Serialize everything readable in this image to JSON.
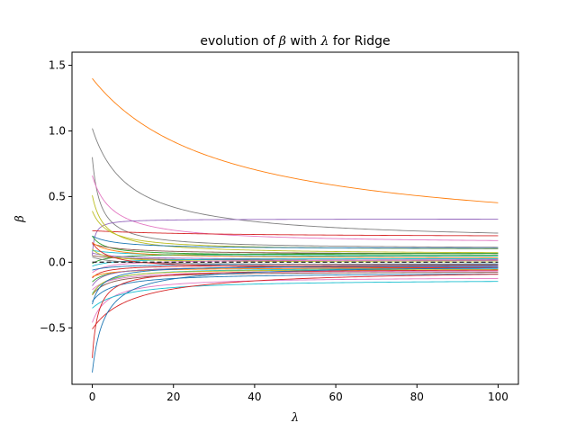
{
  "chart_data": {
    "type": "line",
    "title_parts": {
      "prefix": "evolution of ",
      "beta": "β",
      "middle": " with ",
      "lambda": "λ",
      "suffix": " for Ridge"
    },
    "xlabel": "λ",
    "ylabel": "β",
    "xlim": [
      -5,
      105
    ],
    "ylim": [
      -0.93,
      1.6
    ],
    "xticks": [
      0,
      20,
      40,
      60,
      80,
      100
    ],
    "yticks": [
      -0.5,
      0.0,
      0.5,
      1.0,
      1.5
    ],
    "ytick_labels": [
      "−0.5",
      "0.0",
      "0.5",
      "1.0",
      "1.5"
    ],
    "grid": false,
    "legend": "none",
    "reference_line": {
      "y": 0,
      "style": "dashed",
      "color": "#333333"
    },
    "lambda_range": [
      0,
      100
    ],
    "curve_model": "beta(lambda) = a * c / (c + lambda) + b",
    "series": [
      {
        "color": "#ff7f0e",
        "a": 1.25,
        "b": 0.15,
        "c": 32
      },
      {
        "color": "#7f7f7f",
        "a": 0.87,
        "b": 0.15,
        "c": 9
      },
      {
        "color": "#7f7f7f",
        "a": 0.7,
        "b": 0.1,
        "c": 2
      },
      {
        "color": "#e377c2",
        "a": 0.52,
        "b": 0.14,
        "c": 5
      },
      {
        "color": "#9467bd",
        "a": -0.28,
        "b": 0.33,
        "c": 0.6
      },
      {
        "color": "#d62728",
        "a": 0.05,
        "b": 0.19,
        "c": 30
      },
      {
        "color": "#bcbd22",
        "a": 0.45,
        "b": 0.06,
        "c": 3
      },
      {
        "color": "#bcbd22",
        "a": 0.3,
        "b": 0.09,
        "c": 4
      },
      {
        "color": "#1f77b4",
        "a": 0.1,
        "b": 0.1,
        "c": 6
      },
      {
        "color": "#2ca02c",
        "a": 0.15,
        "b": 0.05,
        "c": 3
      },
      {
        "color": "#8c564b",
        "a": 0.08,
        "b": 0.06,
        "c": 8
      },
      {
        "color": "#17becf",
        "a": 0.05,
        "b": 0.04,
        "c": 10
      },
      {
        "color": "#ff7f0e",
        "a": 0.12,
        "b": 0.03,
        "c": 5
      },
      {
        "color": "#2ca02c",
        "a": -0.08,
        "b": 0.07,
        "c": 4
      },
      {
        "color": "#9467bd",
        "a": 0.05,
        "b": 0.02,
        "c": 6
      },
      {
        "color": "#8c564b",
        "a": 0.04,
        "b": 0.01,
        "c": 8
      },
      {
        "color": "#17becf",
        "a": -0.06,
        "b": 0.03,
        "c": 5
      },
      {
        "color": "#bcbd22",
        "a": 0.1,
        "b": 0.0,
        "c": 3
      },
      {
        "color": "#e377c2",
        "a": -0.1,
        "b": 0.02,
        "c": 4
      },
      {
        "color": "#1f77b4",
        "a": -0.05,
        "b": -0.01,
        "c": 6
      },
      {
        "color": "#7f7f7f",
        "a": 0.06,
        "b": -0.02,
        "c": 5
      },
      {
        "color": "#d62728",
        "a": -0.1,
        "b": -0.02,
        "c": 3
      },
      {
        "color": "#2ca02c",
        "a": -0.12,
        "b": -0.03,
        "c": 4
      },
      {
        "color": "#ff7f0e",
        "a": -0.07,
        "b": -0.04,
        "c": 6
      },
      {
        "color": "#9467bd",
        "a": -0.15,
        "b": -0.03,
        "c": 3
      },
      {
        "color": "#17becf",
        "a": -0.2,
        "b": -0.04,
        "c": 4
      },
      {
        "color": "#e377c2",
        "a": -0.15,
        "b": -0.06,
        "c": 5
      },
      {
        "color": "#8c564b",
        "a": -0.18,
        "b": -0.07,
        "c": 4
      },
      {
        "color": "#bcbd22",
        "a": -0.2,
        "b": -0.05,
        "c": 3
      },
      {
        "color": "#d62728",
        "a": 0.2,
        "b": -0.05,
        "c": 4
      },
      {
        "color": "#1f77b4",
        "a": -0.22,
        "b": -0.08,
        "c": 5
      },
      {
        "color": "#e377c2",
        "a": -0.35,
        "b": -0.11,
        "c": 4
      },
      {
        "color": "#17becf",
        "a": -0.22,
        "b": -0.13,
        "c": 8
      },
      {
        "color": "#1f77b4",
        "a": -0.3,
        "b": -0.02,
        "c": 2.5
      },
      {
        "color": "#d62728",
        "a": -0.46,
        "b": -0.05,
        "c": 10
      },
      {
        "color": "#d62728",
        "a": -0.68,
        "b": -0.05,
        "c": 1.5
      },
      {
        "color": "#1f77b4",
        "a": -0.82,
        "b": -0.02,
        "c": 3
      }
    ]
  }
}
